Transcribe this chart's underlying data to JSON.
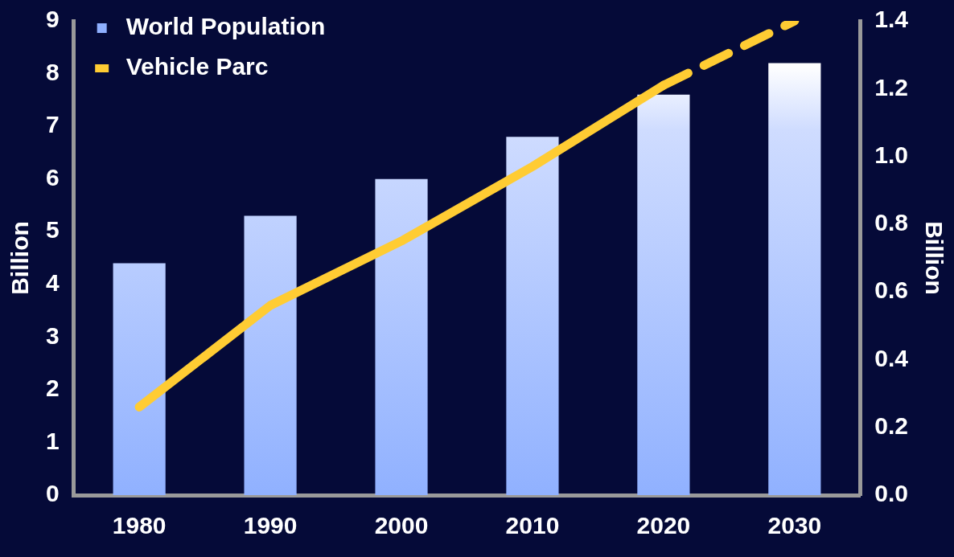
{
  "chart_data": {
    "type": "bar",
    "categories": [
      "1980",
      "1990",
      "2000",
      "2010",
      "2020",
      "2030"
    ],
    "ylabel": "Billion",
    "y2label": "Billion",
    "ylim": [
      0,
      9
    ],
    "yticks": [
      0,
      1,
      2,
      3,
      4,
      5,
      6,
      7,
      8,
      9
    ],
    "y2lim": [
      0,
      1.4
    ],
    "y2ticks": [
      {
        "value": 0,
        "label": "0.0"
      },
      {
        "value": 0.2,
        "label": "0.2"
      },
      {
        "value": 0.4,
        "label": "0.4"
      },
      {
        "value": 0.6,
        "label": "0.6"
      },
      {
        "value": 0.8,
        "label": "0.8"
      },
      {
        "value": 1,
        "label": "1.0"
      },
      {
        "value": 1.2,
        "label": "1.2"
      },
      {
        "value": 1.4,
        "label": "1.4"
      }
    ],
    "grid": false,
    "legend": "top left",
    "series": [
      {
        "name": "World Population",
        "color": "#8fb0ff",
        "values": [
          4.4,
          5.3,
          6.0,
          6.8,
          7.6,
          8.2
        ]
      },
      {
        "name": "Vehicle Parc",
        "type": "line",
        "axis": "y2",
        "color": "#ffcc33",
        "line_style": "solid",
        "values": [
          0.26,
          0.56,
          0.75,
          0.97,
          1.21,
          null
        ]
      },
      {
        "type": "line",
        "axis": "y2",
        "color": "#ffcc33",
        "line_style": "dashed",
        "values": [
          null,
          null,
          null,
          null,
          1.21,
          1.4
        ]
      }
    ]
  }
}
